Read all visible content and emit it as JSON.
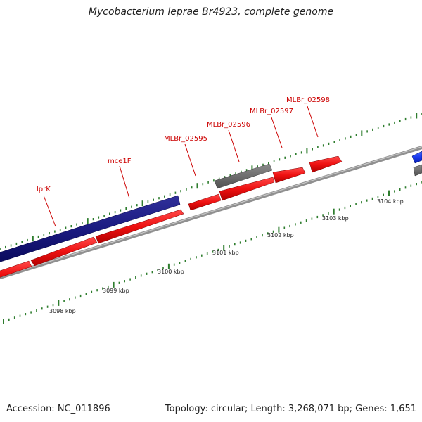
{
  "title": "Mycobacterium leprae Br4923, complete genome",
  "footer": {
    "accession": "Accession: NC_011896",
    "topology": "Topology: circular; Length: 3,268,071 bp; Genes: 1,651"
  },
  "ruler_labels": [
    "3098 kbp",
    "3099 kbp",
    "3100 kbp",
    "3101 kbp",
    "3102 kbp",
    "3103 kbp",
    "3104 kbp"
  ],
  "gene_labels": [
    "lprK",
    "mce1F",
    "MLBr_02595",
    "MLBr_02596",
    "MLBr_02597",
    "MLBr_02598"
  ],
  "colors": {
    "cds_forward": "#ee1111",
    "lipoprotein": "#1a1a80",
    "pseudogene": "#6e6e6e",
    "other_feature": "#1a3aee",
    "backbone": "#909090",
    "ticks": "#2e7d2e",
    "gene_label": "#cc0000"
  }
}
